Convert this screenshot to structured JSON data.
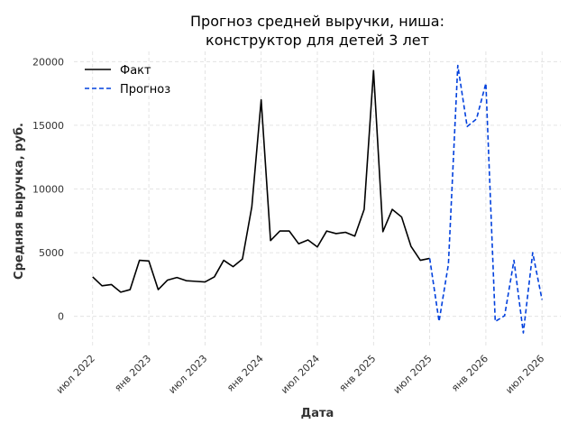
{
  "chart_data": {
    "type": "line",
    "title_lines": [
      "Прогноз средней выручки, ниша:",
      "конструктор для детей 3 лет"
    ],
    "xlabel": "Дата",
    "ylabel": "Средняя выручка, руб.",
    "x_ticks": [
      {
        "date": "2022-07-01",
        "label": "июл 2022"
      },
      {
        "date": "2023-01-01",
        "label": "янв 2023"
      },
      {
        "date": "2023-07-01",
        "label": "июл 2023"
      },
      {
        "date": "2024-01-01",
        "label": "янв 2024"
      },
      {
        "date": "2024-07-01",
        "label": "июл 2024"
      },
      {
        "date": "2025-01-01",
        "label": "янв 2025"
      },
      {
        "date": "2025-07-01",
        "label": "июл 2025"
      },
      {
        "date": "2026-01-01",
        "label": "янв 2026"
      },
      {
        "date": "2026-07-01",
        "label": "июл 2026"
      }
    ],
    "y_ticks": [
      0,
      5000,
      10000,
      15000,
      20000
    ],
    "y_tick_labels": [
      "0",
      "5000",
      "10000",
      "15000",
      "20000"
    ],
    "xlim": [
      "2022-05-01",
      "2026-09-01"
    ],
    "ylim": [
      -2500,
      20800
    ],
    "grid": true,
    "legend_position": "top-left",
    "series": [
      {
        "name": "Факт",
        "color": "#000000",
        "style": "solid",
        "points": [
          {
            "x": "2022-07-01",
            "y": 3100
          },
          {
            "x": "2022-08-01",
            "y": 2400
          },
          {
            "x": "2022-09-01",
            "y": 2500
          },
          {
            "x": "2022-10-01",
            "y": 1900
          },
          {
            "x": "2022-11-01",
            "y": 2100
          },
          {
            "x": "2022-12-01",
            "y": 4400
          },
          {
            "x": "2023-01-01",
            "y": 4350
          },
          {
            "x": "2023-02-01",
            "y": 2100
          },
          {
            "x": "2023-03-01",
            "y": 2850
          },
          {
            "x": "2023-04-01",
            "y": 3050
          },
          {
            "x": "2023-05-01",
            "y": 2800
          },
          {
            "x": "2023-06-01",
            "y": 2750
          },
          {
            "x": "2023-07-01",
            "y": 2700
          },
          {
            "x": "2023-08-01",
            "y": 3100
          },
          {
            "x": "2023-09-01",
            "y": 4400
          },
          {
            "x": "2023-10-01",
            "y": 3900
          },
          {
            "x": "2023-11-01",
            "y": 4500
          },
          {
            "x": "2023-12-01",
            "y": 8600
          },
          {
            "x": "2024-01-01",
            "y": 17000
          },
          {
            "x": "2024-02-01",
            "y": 5950
          },
          {
            "x": "2024-03-01",
            "y": 6700
          },
          {
            "x": "2024-04-01",
            "y": 6700
          },
          {
            "x": "2024-05-01",
            "y": 5700
          },
          {
            "x": "2024-06-01",
            "y": 6000
          },
          {
            "x": "2024-07-01",
            "y": 5450
          },
          {
            "x": "2024-08-01",
            "y": 6700
          },
          {
            "x": "2024-09-01",
            "y": 6500
          },
          {
            "x": "2024-10-01",
            "y": 6600
          },
          {
            "x": "2024-11-01",
            "y": 6300
          },
          {
            "x": "2024-12-01",
            "y": 8400
          },
          {
            "x": "2025-01-01",
            "y": 19300
          },
          {
            "x": "2025-02-01",
            "y": 6650
          },
          {
            "x": "2025-03-01",
            "y": 8400
          },
          {
            "x": "2025-04-01",
            "y": 7800
          },
          {
            "x": "2025-05-01",
            "y": 5500
          },
          {
            "x": "2025-06-01",
            "y": 4400
          },
          {
            "x": "2025-07-01",
            "y": 4550
          }
        ]
      },
      {
        "name": "Прогноз",
        "color": "#0040dd",
        "style": "dashed",
        "points": [
          {
            "x": "2025-07-01",
            "y": 4550
          },
          {
            "x": "2025-08-01",
            "y": -400
          },
          {
            "x": "2025-09-01",
            "y": 4100
          },
          {
            "x": "2025-10-01",
            "y": 19700
          },
          {
            "x": "2025-11-01",
            "y": 14900
          },
          {
            "x": "2025-12-01",
            "y": 15500
          },
          {
            "x": "2026-01-01",
            "y": 18300
          },
          {
            "x": "2026-02-01",
            "y": -400
          },
          {
            "x": "2026-03-01",
            "y": 50
          },
          {
            "x": "2026-04-01",
            "y": 4400
          },
          {
            "x": "2026-05-01",
            "y": -1300
          },
          {
            "x": "2026-06-01",
            "y": 5000
          },
          {
            "x": "2026-07-01",
            "y": 1300
          }
        ]
      }
    ]
  }
}
